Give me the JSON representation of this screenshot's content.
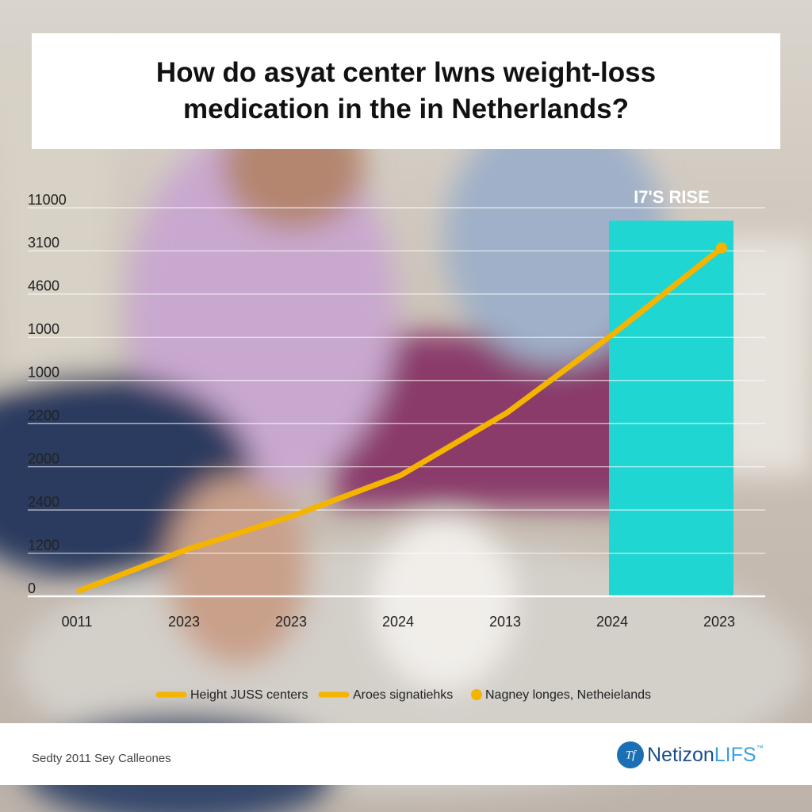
{
  "chart_data": {
    "type": "line",
    "title": "How do asyat center lwns weight-loss medication in the in Netherlands?",
    "categories": [
      "0011",
      "2023",
      "2023",
      "2024",
      "2013",
      "2024",
      "2023"
    ],
    "series": [
      {
        "name": "Height JUSS centers",
        "color": "#f5b400",
        "values": [
          0.13,
          1.08,
          1.87,
          2.8,
          4.26,
          6.1,
          8.07
        ]
      }
    ],
    "ylim": [
      0,
      9
    ],
    "yticks": [
      {
        "value": 0,
        "label": "0"
      },
      {
        "value": 1,
        "label": "1200"
      },
      {
        "value": 2,
        "label": "2400"
      },
      {
        "value": 3,
        "label": "2000"
      },
      {
        "value": 4,
        "label": "2200"
      },
      {
        "value": 5,
        "label": "1000"
      },
      {
        "value": 6,
        "label": "1000"
      },
      {
        "value": 7,
        "label": "4600"
      },
      {
        "value": 8,
        "label": "3100"
      },
      {
        "value": 9,
        "label": "11000"
      }
    ],
    "grid": true,
    "highlight": {
      "label": "I7'S RISE",
      "value": 8.7,
      "color": "#20d6d2"
    },
    "legend": [
      {
        "label": "Height JUSS centers",
        "marker": "line",
        "color": "#f5b400"
      },
      {
        "label": "Aroes signatiehks",
        "marker": "line",
        "color": "#f5b400"
      },
      {
        "label": "Nagney longes, Netheielands",
        "marker": "dot",
        "color": "#f5b400"
      }
    ]
  },
  "footer": {
    "source": "Sedty 2011 Sey Calleones",
    "brand": {
      "name": "Netizon",
      "suffix": "LIFS",
      "mark": "™"
    }
  }
}
